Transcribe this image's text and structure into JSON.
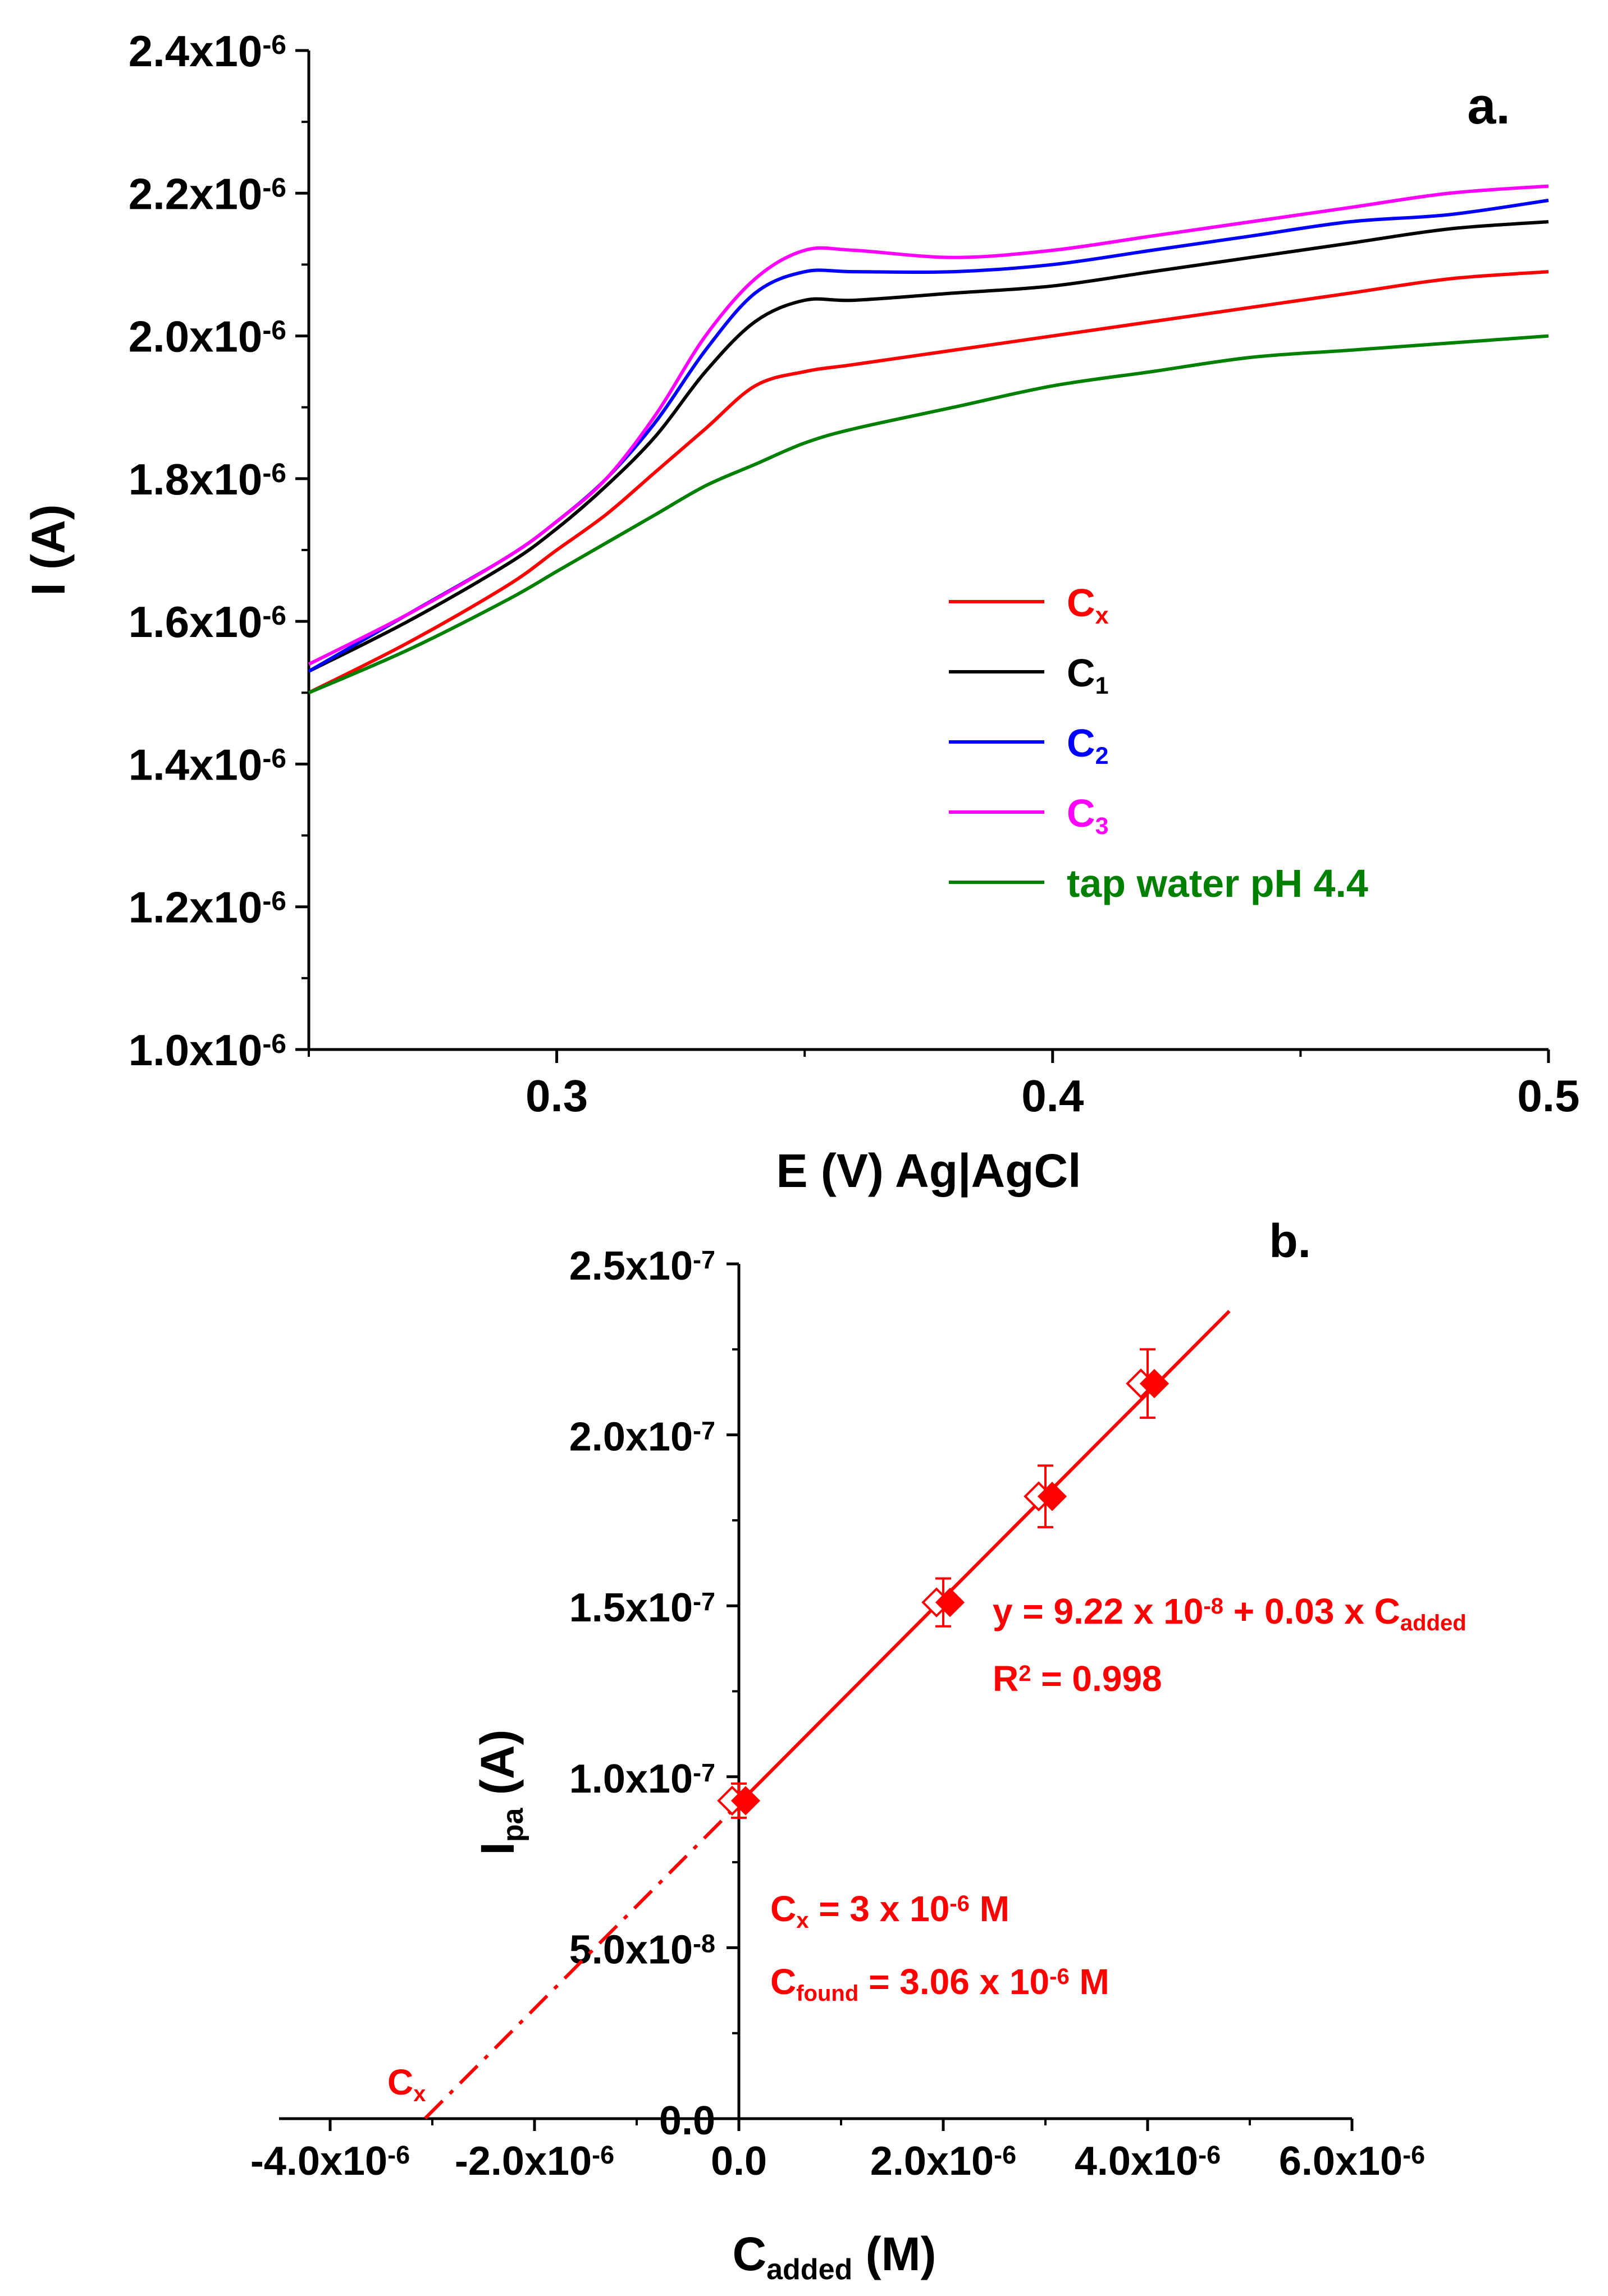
{
  "chart_data": [
    {
      "id": "a",
      "type": "line",
      "panel_label": "a.",
      "xlabel": "E (V) Ag|AgCl",
      "ylabel": "I (A)",
      "xlim": [
        0.25,
        0.5
      ],
      "ylim": [
        1e-06,
        2.4e-06
      ],
      "x_ticks": [
        0.3,
        0.4,
        0.5
      ],
      "x_tick_labels": [
        "0.3",
        "0.4",
        "0.5"
      ],
      "y_ticks": [
        1e-06,
        1.2e-06,
        1.4e-06,
        1.6e-06,
        1.8e-06,
        2e-06,
        2.2e-06,
        2.4e-06
      ],
      "y_tick_labels": [
        {
          "mant": "1.0x10",
          "exp": "-6"
        },
        {
          "mant": "1.2x10",
          "exp": "-6"
        },
        {
          "mant": "1.4x10",
          "exp": "-6"
        },
        {
          "mant": "1.6x10",
          "exp": "-6"
        },
        {
          "mant": "1.8x10",
          "exp": "-6"
        },
        {
          "mant": "2.0x10",
          "exp": "-6"
        },
        {
          "mant": "2.2x10",
          "exp": "-6"
        },
        {
          "mant": "2.4x10",
          "exp": "-6"
        }
      ],
      "legend_position": "lower-right",
      "series": [
        {
          "name": "Cx",
          "main": "C",
          "sub": "x",
          "color": "#ff0000",
          "x": [
            0.25,
            0.27,
            0.29,
            0.3,
            0.31,
            0.32,
            0.33,
            0.34,
            0.35,
            0.36,
            0.38,
            0.4,
            0.42,
            0.44,
            0.46,
            0.48,
            0.5
          ],
          "y": [
            1.5e-06,
            1.57e-06,
            1.65e-06,
            1.7e-06,
            1.75e-06,
            1.81e-06,
            1.87e-06,
            1.93e-06,
            1.95e-06,
            1.96e-06,
            1.98e-06,
            2e-06,
            2.02e-06,
            2.04e-06,
            2.06e-06,
            2.08e-06,
            2.09e-06
          ]
        },
        {
          "name": "C1",
          "main": "C",
          "sub": "1",
          "color": "#000000",
          "x": [
            0.25,
            0.27,
            0.29,
            0.3,
            0.31,
            0.32,
            0.33,
            0.34,
            0.35,
            0.36,
            0.38,
            0.4,
            0.42,
            0.44,
            0.46,
            0.48,
            0.5
          ],
          "y": [
            1.53e-06,
            1.6e-06,
            1.68e-06,
            1.73e-06,
            1.79e-06,
            1.86e-06,
            1.95e-06,
            2.02e-06,
            2.05e-06,
            2.05e-06,
            2.06e-06,
            2.07e-06,
            2.09e-06,
            2.11e-06,
            2.13e-06,
            2.15e-06,
            2.16e-06
          ]
        },
        {
          "name": "C2",
          "main": "C",
          "sub": "2",
          "color": "#0000ff",
          "x": [
            0.25,
            0.27,
            0.29,
            0.3,
            0.31,
            0.32,
            0.33,
            0.34,
            0.35,
            0.36,
            0.38,
            0.4,
            0.42,
            0.44,
            0.46,
            0.48,
            0.5
          ],
          "y": [
            1.53e-06,
            1.61e-06,
            1.69e-06,
            1.74e-06,
            1.8e-06,
            1.88e-06,
            1.98e-06,
            2.06e-06,
            2.09e-06,
            2.09e-06,
            2.09e-06,
            2.1e-06,
            2.12e-06,
            2.14e-06,
            2.16e-06,
            2.17e-06,
            2.19e-06
          ]
        },
        {
          "name": "C3",
          "main": "C",
          "sub": "3",
          "color": "#ff00ff",
          "x": [
            0.25,
            0.27,
            0.29,
            0.3,
            0.31,
            0.32,
            0.33,
            0.34,
            0.35,
            0.36,
            0.38,
            0.4,
            0.42,
            0.44,
            0.46,
            0.48,
            0.5
          ],
          "y": [
            1.54e-06,
            1.61e-06,
            1.69e-06,
            1.74e-06,
            1.8e-06,
            1.89e-06,
            2e-06,
            2.08e-06,
            2.12e-06,
            2.12e-06,
            2.11e-06,
            2.12e-06,
            2.14e-06,
            2.16e-06,
            2.18e-06,
            2.2e-06,
            2.21e-06
          ]
        },
        {
          "name": "tap water pH 4.4",
          "main": "tap water pH 4.4",
          "sub": "",
          "color": "#008000",
          "x": [
            0.25,
            0.27,
            0.29,
            0.3,
            0.31,
            0.32,
            0.33,
            0.34,
            0.35,
            0.36,
            0.38,
            0.4,
            0.42,
            0.44,
            0.46,
            0.48,
            0.5
          ],
          "y": [
            1.5e-06,
            1.56e-06,
            1.63e-06,
            1.67e-06,
            1.71e-06,
            1.75e-06,
            1.79e-06,
            1.82e-06,
            1.85e-06,
            1.87e-06,
            1.9e-06,
            1.93e-06,
            1.95e-06,
            1.97e-06,
            1.98e-06,
            1.99e-06,
            2e-06
          ]
        }
      ]
    },
    {
      "id": "b",
      "type": "scatter",
      "panel_label": "b.",
      "xlabel": {
        "main": "C",
        "sub": "added",
        "tail": " (M)"
      },
      "ylabel": {
        "main": "I",
        "sub": "pa",
        "tail": " (A)"
      },
      "xlim": [
        -4.5e-06,
        6e-06
      ],
      "ylim": [
        0,
        2.5e-07
      ],
      "x_ticks": [
        -4e-06,
        -2e-06,
        0.0,
        2e-06,
        4e-06,
        6e-06
      ],
      "x_tick_labels": [
        {
          "mant": "-4.0x10",
          "exp": "-6"
        },
        {
          "mant": "-2.0x10",
          "exp": "-6"
        },
        {
          "mant": "0.0",
          "exp": ""
        },
        {
          "mant": "2.0x10",
          "exp": "-6"
        },
        {
          "mant": "4.0x10",
          "exp": "-6"
        },
        {
          "mant": "6.0x10",
          "exp": "-6"
        }
      ],
      "y_ticks": [
        0.0,
        5e-08,
        1e-07,
        1.5e-07,
        2e-07,
        2.5e-07
      ],
      "y_tick_labels": [
        {
          "mant": "0.0",
          "exp": ""
        },
        {
          "mant": "5.0x10",
          "exp": "-8"
        },
        {
          "mant": "1.0x10",
          "exp": "-7"
        },
        {
          "mant": "1.5x10",
          "exp": "-7"
        },
        {
          "mant": "2.0x10",
          "exp": "-7"
        },
        {
          "mant": "2.5x10",
          "exp": "-7"
        }
      ],
      "color": "#ff0000",
      "points": [
        {
          "x": 0.0,
          "y": 9.3e-08,
          "err": 5e-09
        },
        {
          "x": 2e-06,
          "y": 1.51e-07,
          "err": 7e-09
        },
        {
          "x": 3e-06,
          "y": 1.82e-07,
          "err": 9e-09
        },
        {
          "x": 4e-06,
          "y": 2.15e-07,
          "err": 1e-08
        }
      ],
      "fit": {
        "intercept": 9.22e-08,
        "slope": 0.03,
        "x_start": 0.0,
        "x_end": 4.8e-06,
        "extrap_start": -3.07e-06
      },
      "equation": {
        "pre": "y = 9.22 x 10",
        "exp": "-8",
        "mid": " + 0.03 x C",
        "sub": "added"
      },
      "r2": {
        "pre": "R",
        "sup": "2",
        "post": " = 0.998"
      },
      "cx_label": {
        "main": "C",
        "sub": "x"
      },
      "cx_value": {
        "main": "C",
        "sub": "x",
        "pre": " = 3 x 10",
        "exp": "-6",
        "post": " M"
      },
      "cfound_value": {
        "main": "C",
        "sub": "found",
        "pre": " = 3.06 x 10",
        "exp": "-6",
        "post": " M"
      }
    }
  ]
}
